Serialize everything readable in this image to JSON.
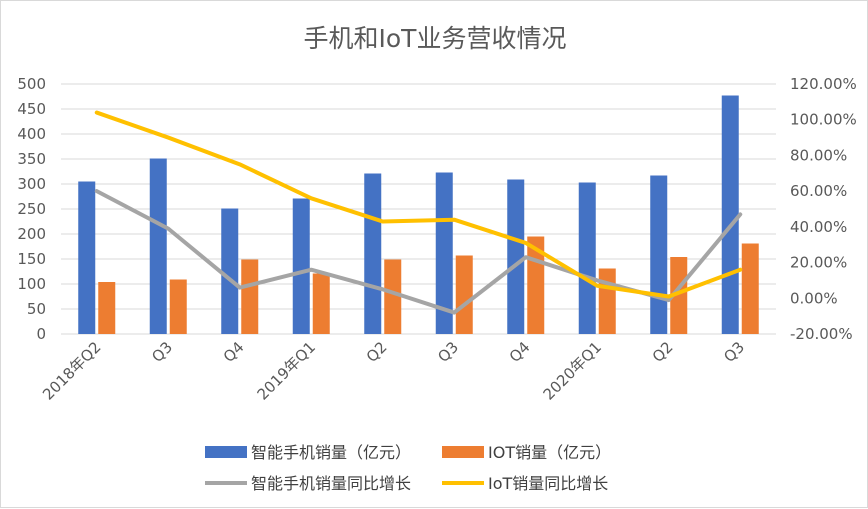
{
  "chart_data": {
    "type": "bar",
    "title": "手机和IoT业务营收情况",
    "categories": [
      "2018年Q2",
      "Q3",
      "Q4",
      "2019年Q1",
      "Q2",
      "Q3",
      "Q4",
      "2020年Q1",
      "Q2",
      "Q3"
    ],
    "left_axis": {
      "ylim": [
        0,
        500
      ],
      "ticks": [
        "0",
        "50",
        "100",
        "150",
        "200",
        "250",
        "300",
        "350",
        "400",
        "450",
        "500"
      ]
    },
    "right_axis": {
      "ylim": [
        -20,
        120
      ],
      "ticks": [
        "-20.00%",
        "0.00%",
        "20.00%",
        "40.00%",
        "60.00%",
        "80.00%",
        "100.00%",
        "120.00%"
      ]
    },
    "series": [
      {
        "name": "智能手机销量（亿元）",
        "kind": "bar",
        "axis": "left",
        "color": "#4472c4",
        "values": [
          305,
          351,
          251,
          271,
          321,
          323,
          309,
          303,
          317,
          477
        ]
      },
      {
        "name": "IOT销量（亿元）",
        "kind": "bar",
        "axis": "left",
        "color": "#ed7d31",
        "values": [
          104,
          109,
          149,
          121,
          149,
          157,
          195,
          131,
          154,
          181
        ]
      },
      {
        "name": "智能手机销量同比增长",
        "kind": "line",
        "axis": "right",
        "color": "#a5a5a5",
        "values": [
          60,
          39,
          6,
          16,
          5,
          -8,
          23,
          10,
          -1,
          47
        ]
      },
      {
        "name": "IoT销量同比增长",
        "kind": "line",
        "axis": "right",
        "color": "#ffc000",
        "values": [
          104,
          90,
          75,
          56,
          43,
          44,
          31,
          7,
          1,
          16
        ]
      }
    ]
  }
}
